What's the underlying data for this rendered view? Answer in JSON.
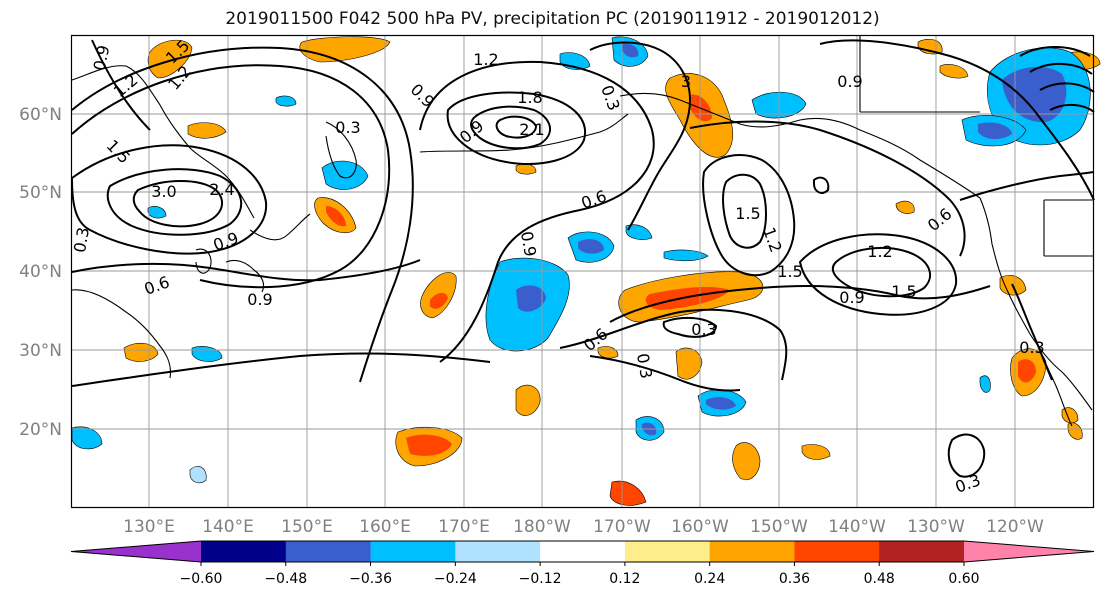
{
  "title": "2019011500 F042 500 hPa PV, precipitation PC (2019011912 - 2019012012)",
  "lat_labels": [
    "60°N",
    "50°N",
    "40°N",
    "30°N",
    "20°N"
  ],
  "lon_labels": [
    "130°E",
    "140°E",
    "150°E",
    "160°E",
    "170°E",
    "180°W",
    "170°W",
    "160°W",
    "150°W",
    "140°W",
    "130°W",
    "120°W"
  ],
  "colorbar": {
    "ticks": [
      "−0.60",
      "−0.48",
      "−0.36",
      "−0.24",
      "−0.12",
      "0.12",
      "0.24",
      "0.36",
      "0.48",
      "0.60"
    ],
    "colors": [
      "#9932CC",
      "#00008B",
      "#3A5FCD",
      "#00BFFF",
      "#B0E2FF",
      "#FFFFFF",
      "#FFEC8B",
      "#FFA500",
      "#FF4500",
      "#B22222",
      "#FF82AB"
    ]
  },
  "contour_labels": [
    {
      "text": "0.9"
    },
    {
      "text": "1.2"
    },
    {
      "text": "1.5"
    },
    {
      "text": "1.2"
    },
    {
      "text": "1.2"
    },
    {
      "text": "0.9"
    },
    {
      "text": "1.8"
    },
    {
      "text": "0.3"
    },
    {
      "text": "0.9"
    },
    {
      "text": "3"
    },
    {
      "text": "2.1"
    },
    {
      "text": "1.5"
    },
    {
      "text": "3.0"
    },
    {
      "text": "2.4"
    },
    {
      "text": "0.6"
    },
    {
      "text": "0.3"
    },
    {
      "text": "0.9"
    },
    {
      "text": "0.6"
    },
    {
      "text": "0.9"
    },
    {
      "text": "0.6"
    },
    {
      "text": "0.9"
    },
    {
      "text": "1.5"
    },
    {
      "text": "1.2"
    },
    {
      "text": "1.5"
    },
    {
      "text": "1.2"
    },
    {
      "text": "0.9"
    },
    {
      "text": "1.5"
    },
    {
      "text": "0.6"
    },
    {
      "text": "0.3"
    },
    {
      "text": "0.3"
    },
    {
      "text": "0.3"
    },
    {
      "text": "0.3"
    },
    {
      "text": "0.9"
    },
    {
      "text": "0.3"
    }
  ]
}
